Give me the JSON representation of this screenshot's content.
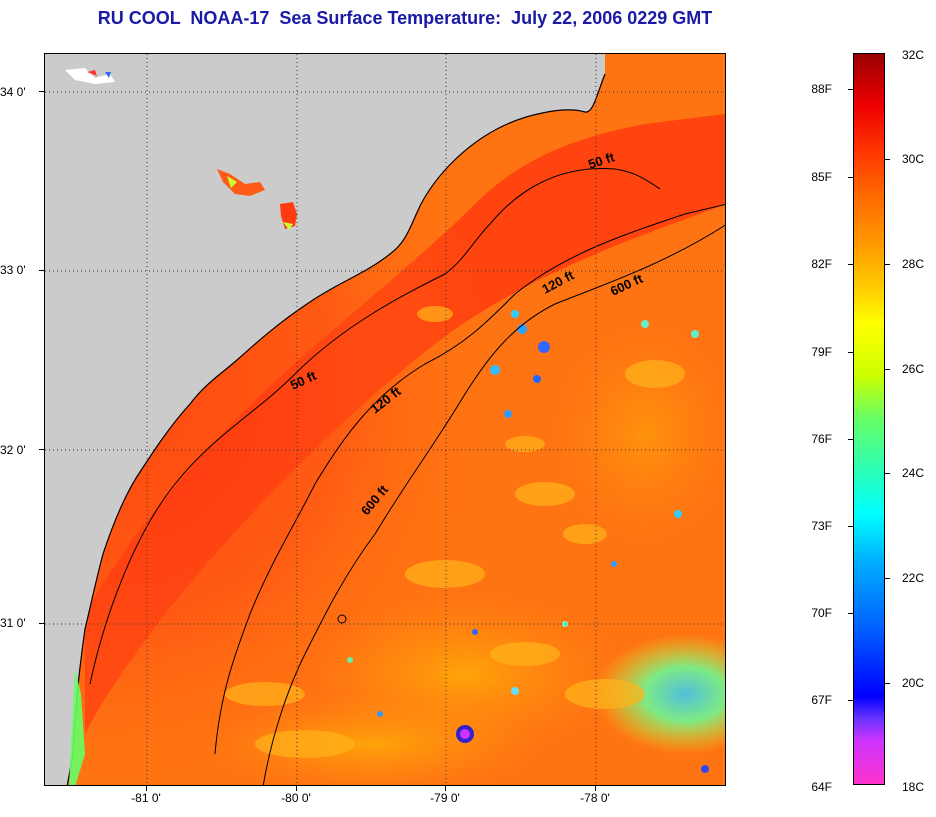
{
  "title": "RU COOL  NOAA-17  Sea Surface Temperature:  July 22, 2006 0229 GMT",
  "lat_labels": [
    "34 0'",
    "33 0'",
    "32 0'",
    "31 0'"
  ],
  "lon_labels": [
    "-81 0'",
    "-80 0'",
    "-79 0'",
    "-78 0'"
  ],
  "contour_labels": {
    "fifty_north": "50 ft",
    "fifty_south": "50 ft",
    "onetwenty_north": "120 ft",
    "onetwenty_south": "120 ft",
    "sixhundred_north": "600 ft",
    "sixhundred_south": "600 ft"
  },
  "colorbar": {
    "fahrenheit": [
      "88F",
      "85F",
      "82F",
      "79F",
      "76F",
      "73F",
      "70F",
      "67F",
      "64F"
    ],
    "celsius": [
      "32C",
      "30C",
      "28C",
      "26C",
      "24C",
      "22C",
      "20C",
      "18C"
    ]
  },
  "colors": {
    "title": "#1a1aa6",
    "land": "#cccccc",
    "sea_warm": "#ff4a14",
    "sea_mid": "#ff7a12"
  }
}
